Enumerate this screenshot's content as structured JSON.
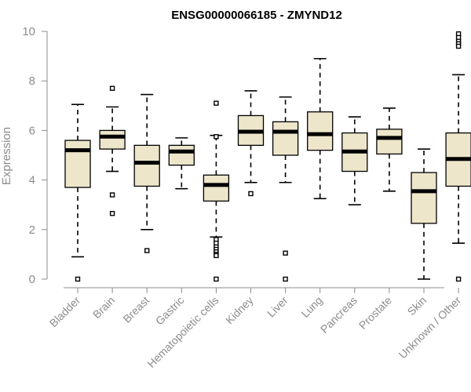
{
  "chart_data": {
    "type": "boxplot",
    "title": "ENSG00000066185 - ZMYND12",
    "xlabel": "",
    "ylabel": "Expression",
    "ylim": [
      0,
      10
    ],
    "yticks": [
      0,
      2,
      4,
      6,
      8,
      10
    ],
    "box_color": "#ede6cb",
    "categories": [
      "Bladder",
      "Brain",
      "Breast",
      "Gastric",
      "Hematopoietic cells",
      "Kidney",
      "Liver",
      "Lung",
      "Pancreas",
      "Prostate",
      "Skin",
      "Unknown / Other"
    ],
    "boxes": [
      {
        "name": "Bladder",
        "min": 0.9,
        "q1": 3.7,
        "median": 5.2,
        "q3": 5.6,
        "max": 7.05,
        "outliers": [
          0.0
        ]
      },
      {
        "name": "Brain",
        "min": 4.35,
        "q1": 5.25,
        "median": 5.75,
        "q3": 6.0,
        "max": 6.95,
        "outliers": [
          7.7,
          3.4,
          2.65
        ]
      },
      {
        "name": "Breast",
        "min": 2.0,
        "q1": 3.75,
        "median": 4.7,
        "q3": 5.4,
        "max": 7.45,
        "outliers": [
          1.15
        ]
      },
      {
        "name": "Gastric",
        "min": 3.65,
        "q1": 4.6,
        "median": 5.15,
        "q3": 5.4,
        "max": 5.7,
        "outliers": []
      },
      {
        "name": "Hematopoietic cells",
        "min": 1.7,
        "q1": 3.15,
        "median": 3.8,
        "q3": 4.2,
        "max": 5.8,
        "outliers": [
          7.1,
          5.75,
          1.6,
          1.45,
          1.3,
          1.2,
          1.1,
          1.0,
          0.95,
          0.0
        ]
      },
      {
        "name": "Kidney",
        "min": 3.9,
        "q1": 5.4,
        "median": 5.95,
        "q3": 6.6,
        "max": 7.6,
        "outliers": [
          3.45
        ]
      },
      {
        "name": "Liver",
        "min": 3.9,
        "q1": 5.0,
        "median": 5.95,
        "q3": 6.35,
        "max": 7.35,
        "outliers": [
          1.05,
          0.0
        ]
      },
      {
        "name": "Lung",
        "min": 3.25,
        "q1": 5.2,
        "median": 5.85,
        "q3": 6.75,
        "max": 8.9,
        "outliers": []
      },
      {
        "name": "Pancreas",
        "min": 3.0,
        "q1": 4.35,
        "median": 5.15,
        "q3": 5.9,
        "max": 6.55,
        "outliers": []
      },
      {
        "name": "Prostate",
        "min": 3.55,
        "q1": 5.05,
        "median": 5.7,
        "q3": 6.05,
        "max": 6.9,
        "outliers": []
      },
      {
        "name": "Skin",
        "min": 0.0,
        "q1": 2.25,
        "median": 3.55,
        "q3": 4.3,
        "max": 5.25,
        "outliers": []
      },
      {
        "name": "Unknown / Other",
        "min": 1.45,
        "q1": 3.75,
        "median": 4.85,
        "q3": 5.9,
        "max": 8.25,
        "outliers": [
          9.9,
          9.75,
          9.6,
          9.5,
          9.4,
          0.0
        ]
      }
    ]
  }
}
